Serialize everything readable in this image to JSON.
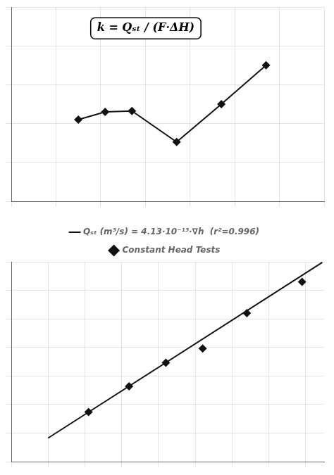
{
  "chart_data": [
    {
      "type": "line",
      "x": [
        1.5,
        2.1,
        2.7,
        3.7,
        4.7,
        5.7
      ],
      "series": [
        {
          "color": "#111111",
          "marker": "diamond",
          "line_style": "solid",
          "values": [
            0.42,
            0.46,
            0.465,
            0.305,
            0.5,
            0.7
          ]
        }
      ],
      "xlim": [
        0,
        7
      ],
      "ylim": [
        0,
        1.0
      ],
      "xticks": [
        0,
        1,
        2,
        3,
        4,
        5,
        6,
        7
      ],
      "yticks": [
        0,
        0.2,
        0.4,
        0.6,
        0.8,
        1.0
      ],
      "grid": true,
      "tick_labels": false,
      "annotations": [
        "k = Qₛₜ / (F·ΔH)"
      ]
    },
    {
      "type": "scatter",
      "series": [
        {
          "name": "Qₛₜ (m³/s) = 4.13·10⁻¹³·∇h  (r²=0.996)",
          "type": "line",
          "color": "#111111",
          "marker": "none",
          "line_style": "solid",
          "x": [
            1.0,
            8.45
          ],
          "values": [
            0.413,
            3.48985
          ]
        },
        {
          "name": "Constant Head Tests",
          "type": "scatter",
          "color": "#111111",
          "marker": "diamond",
          "x": [
            2.1,
            3.2,
            4.2,
            5.2,
            6.4,
            7.9
          ],
          "values": [
            0.87,
            1.32,
            1.73,
            1.98,
            2.6,
            3.15
          ]
        }
      ],
      "xlim": [
        0,
        8.5
      ],
      "ylim": [
        0,
        3.5
      ],
      "xticks": [
        0,
        1,
        2,
        3,
        4,
        5,
        6,
        7,
        8
      ],
      "yticks": [
        0,
        0.5,
        1.0,
        1.5,
        2.0,
        2.5,
        3.0,
        3.5
      ],
      "grid": true,
      "tick_labels": false,
      "legend": "top"
    }
  ]
}
